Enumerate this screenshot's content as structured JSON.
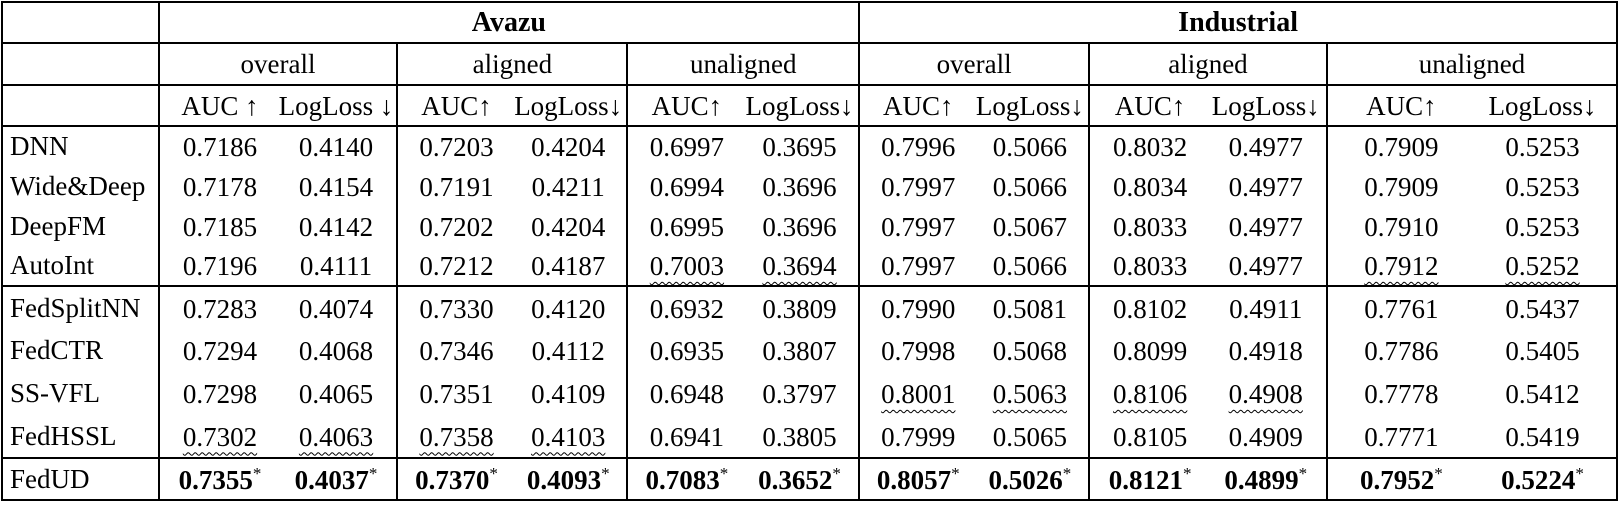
{
  "table": {
    "datasets": [
      {
        "label": "Avazu"
      },
      {
        "label": "Industrial"
      }
    ],
    "column_groups": [
      {
        "dataset": "Avazu",
        "setting_label": "overall",
        "auc_label": "AUC ↑",
        "logloss_label": "LogLoss ↓"
      },
      {
        "dataset": "Avazu",
        "setting_label": "aligned",
        "auc_label": "AUC↑",
        "logloss_label": "LogLoss↓"
      },
      {
        "dataset": "Avazu",
        "setting_label": "unaligned",
        "auc_label": "AUC↑",
        "logloss_label": "LogLoss↓"
      },
      {
        "dataset": "Industrial",
        "setting_label": "overall",
        "auc_label": "AUC↑",
        "logloss_label": "LogLoss↓"
      },
      {
        "dataset": "Industrial",
        "setting_label": "aligned",
        "auc_label": "AUC↑",
        "logloss_label": "LogLoss↓"
      },
      {
        "dataset": "Industrial",
        "setting_label": "unaligned",
        "auc_label": "AUC↑",
        "logloss_label": "LogLoss↓"
      }
    ],
    "rows": [
      {
        "label": "DNN",
        "cells": [
          {
            "auc": "0.7186",
            "logloss": "0.4140"
          },
          {
            "auc": "0.7203",
            "logloss": "0.4204"
          },
          {
            "auc": "0.6997",
            "logloss": "0.3695"
          },
          {
            "auc": "0.7996",
            "logloss": "0.5066"
          },
          {
            "auc": "0.8032",
            "logloss": "0.4977"
          },
          {
            "auc": "0.7909",
            "logloss": "0.5253"
          }
        ]
      },
      {
        "label": "Wide&Deep",
        "cells": [
          {
            "auc": "0.7178",
            "logloss": "0.4154"
          },
          {
            "auc": "0.7191",
            "logloss": "0.4211"
          },
          {
            "auc": "0.6994",
            "logloss": "0.3696"
          },
          {
            "auc": "0.7997",
            "logloss": "0.5066"
          },
          {
            "auc": "0.8034",
            "logloss": "0.4977"
          },
          {
            "auc": "0.7909",
            "logloss": "0.5253"
          }
        ]
      },
      {
        "label": "DeepFM",
        "cells": [
          {
            "auc": "0.7185",
            "logloss": "0.4142"
          },
          {
            "auc": "0.7202",
            "logloss": "0.4204"
          },
          {
            "auc": "0.6995",
            "logloss": "0.3696"
          },
          {
            "auc": "0.7997",
            "logloss": "0.5067"
          },
          {
            "auc": "0.8033",
            "logloss": "0.4977"
          },
          {
            "auc": "0.7910",
            "logloss": "0.5253"
          }
        ]
      },
      {
        "label": "AutoInt",
        "cells": [
          {
            "auc": "0.7196",
            "logloss": "0.4111"
          },
          {
            "auc": "0.7212",
            "logloss": "0.4187"
          },
          {
            "auc": "0.7003",
            "logloss": "0.3694",
            "second": true
          },
          {
            "auc": "0.7997",
            "logloss": "0.5066"
          },
          {
            "auc": "0.8033",
            "logloss": "0.4977"
          },
          {
            "auc": "0.7912",
            "logloss": "0.5252",
            "second": true
          }
        ]
      },
      {
        "label": "FedSplitNN",
        "section_start": true,
        "section": "sec2",
        "cells": [
          {
            "auc": "0.7283",
            "logloss": "0.4074"
          },
          {
            "auc": "0.7330",
            "logloss": "0.4120"
          },
          {
            "auc": "0.6932",
            "logloss": "0.3809"
          },
          {
            "auc": "0.7990",
            "logloss": "0.5081"
          },
          {
            "auc": "0.8102",
            "logloss": "0.4911"
          },
          {
            "auc": "0.7761",
            "logloss": "0.5437"
          }
        ]
      },
      {
        "label": "FedCTR",
        "section": "sec2",
        "cells": [
          {
            "auc": "0.7294",
            "logloss": "0.4068"
          },
          {
            "auc": "0.7346",
            "logloss": "0.4112"
          },
          {
            "auc": "0.6935",
            "logloss": "0.3807"
          },
          {
            "auc": "0.7998",
            "logloss": "0.5068"
          },
          {
            "auc": "0.8099",
            "logloss": "0.4918"
          },
          {
            "auc": "0.7786",
            "logloss": "0.5405"
          }
        ]
      },
      {
        "label": "SS-VFL",
        "section": "sec2",
        "cells": [
          {
            "auc": "0.7298",
            "logloss": "0.4065"
          },
          {
            "auc": "0.7351",
            "logloss": "0.4109"
          },
          {
            "auc": "0.6948",
            "logloss": "0.3797"
          },
          {
            "auc": "0.8001",
            "logloss": "0.5063",
            "second": true
          },
          {
            "auc": "0.8106",
            "logloss": "0.4908",
            "second": true
          },
          {
            "auc": "0.7778",
            "logloss": "0.5412"
          }
        ]
      },
      {
        "label": "FedHSSL",
        "section": "sec2",
        "cells": [
          {
            "auc": "0.7302",
            "logloss": "0.4063",
            "second": true
          },
          {
            "auc": "0.7358",
            "logloss": "0.4103",
            "second": true
          },
          {
            "auc": "0.6941",
            "logloss": "0.3805"
          },
          {
            "auc": "0.7999",
            "logloss": "0.5065"
          },
          {
            "auc": "0.8105",
            "logloss": "0.4909"
          },
          {
            "auc": "0.7771",
            "logloss": "0.5419"
          }
        ]
      },
      {
        "label": "FedUD",
        "section_start": true,
        "section": "final",
        "best": true,
        "value_suffix": "*",
        "cells": [
          {
            "auc": "0.7355",
            "logloss": "0.4037"
          },
          {
            "auc": "0.7370",
            "logloss": "0.4093"
          },
          {
            "auc": "0.7083",
            "logloss": "0.3652"
          },
          {
            "auc": "0.8057",
            "logloss": "0.5026"
          },
          {
            "auc": "0.8121",
            "logloss": "0.4899"
          },
          {
            "auc": "0.7952",
            "logloss": "0.5224"
          }
        ]
      }
    ]
  }
}
